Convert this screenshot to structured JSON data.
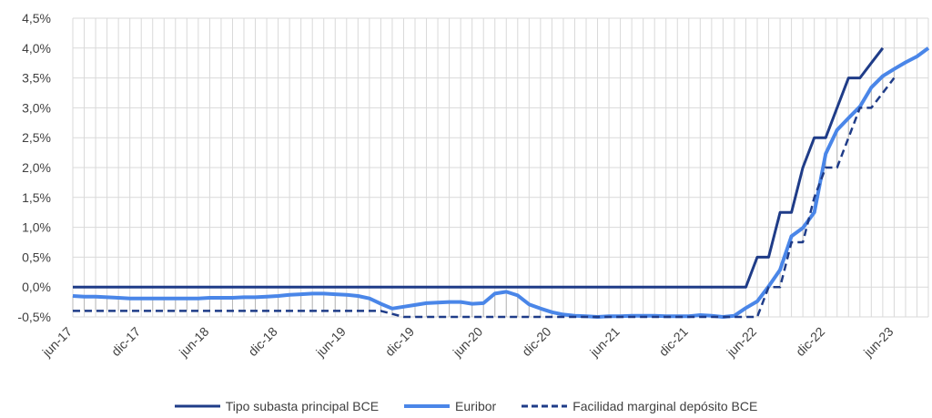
{
  "chart_data": {
    "type": "line",
    "title": "",
    "xlabel": "",
    "ylabel": "",
    "ylim": [
      -0.5,
      4.5
    ],
    "y_ticks": [
      "-0,5%",
      "0,0%",
      "0,5%",
      "1,0%",
      "1,5%",
      "2,0%",
      "2,5%",
      "3,0%",
      "3,5%",
      "4,0%",
      "4,5%"
    ],
    "x_tick_labels": [
      "jun-17",
      "dic-17",
      "jun-18",
      "dic-18",
      "jun-19",
      "dic-19",
      "jun-20",
      "dic-20",
      "jun-21",
      "dic-21",
      "jun-22",
      "dic-22",
      "jun-23"
    ],
    "grid": true,
    "legend_position": "bottom",
    "series": [
      {
        "name": "Tipo subasta principal BCE",
        "color": "#1F3C88",
        "style": "solid",
        "values": [
          0,
          0,
          0,
          0,
          0,
          0,
          0,
          0,
          0,
          0,
          0,
          0,
          0,
          0,
          0,
          0,
          0,
          0,
          0,
          0,
          0,
          0,
          0,
          0,
          0,
          0,
          0,
          0,
          0,
          0,
          0,
          0,
          0,
          0,
          0,
          0,
          0,
          0,
          0,
          0,
          0,
          0,
          0,
          0,
          0,
          0,
          0,
          0,
          0,
          0,
          0,
          0,
          0,
          0,
          0,
          0,
          0,
          0,
          0,
          0,
          0.5,
          0.5,
          1.25,
          1.25,
          2.0,
          2.5,
          2.5,
          3.0,
          3.5,
          3.5,
          3.75,
          4.0
        ]
      },
      {
        "name": "Euribor",
        "color": "#4A86E8",
        "style": "solid",
        "values": [
          -0.15,
          -0.16,
          -0.16,
          -0.17,
          -0.18,
          -0.19,
          -0.19,
          -0.19,
          -0.19,
          -0.19,
          -0.19,
          -0.19,
          -0.18,
          -0.18,
          -0.18,
          -0.17,
          -0.17,
          -0.16,
          -0.15,
          -0.13,
          -0.12,
          -0.11,
          -0.11,
          -0.12,
          -0.13,
          -0.15,
          -0.19,
          -0.28,
          -0.36,
          -0.33,
          -0.3,
          -0.27,
          -0.26,
          -0.25,
          -0.25,
          -0.28,
          -0.27,
          -0.11,
          -0.08,
          -0.14,
          -0.29,
          -0.36,
          -0.42,
          -0.46,
          -0.48,
          -0.49,
          -0.5,
          -0.49,
          -0.49,
          -0.48,
          -0.48,
          -0.48,
          -0.49,
          -0.49,
          -0.49,
          -0.47,
          -0.48,
          -0.5,
          -0.48,
          -0.35,
          -0.24,
          0.01,
          0.29,
          0.85,
          0.99,
          1.25,
          2.23,
          2.63,
          2.83,
          3.02,
          3.34,
          3.53,
          3.65,
          3.76,
          3.86,
          4.0
        ]
      },
      {
        "name": "Facilidad marginal depósito BCE",
        "color": "#1F3C88",
        "style": "dashed",
        "values": [
          -0.4,
          -0.4,
          -0.4,
          -0.4,
          -0.4,
          -0.4,
          -0.4,
          -0.4,
          -0.4,
          -0.4,
          -0.4,
          -0.4,
          -0.4,
          -0.4,
          -0.4,
          -0.4,
          -0.4,
          -0.4,
          -0.4,
          -0.4,
          -0.4,
          -0.4,
          -0.4,
          -0.4,
          -0.4,
          -0.4,
          -0.4,
          -0.4,
          -0.45,
          -0.5,
          -0.5,
          -0.5,
          -0.5,
          -0.5,
          -0.5,
          -0.5,
          -0.5,
          -0.5,
          -0.5,
          -0.5,
          -0.5,
          -0.5,
          -0.5,
          -0.5,
          -0.5,
          -0.5,
          -0.5,
          -0.5,
          -0.5,
          -0.5,
          -0.5,
          -0.5,
          -0.5,
          -0.5,
          -0.5,
          -0.5,
          -0.5,
          -0.5,
          -0.5,
          -0.5,
          -0.5,
          0.0,
          0.0,
          0.75,
          0.75,
          1.5,
          2.0,
          2.0,
          2.5,
          3.0,
          3.0,
          3.25,
          3.5
        ]
      }
    ]
  }
}
